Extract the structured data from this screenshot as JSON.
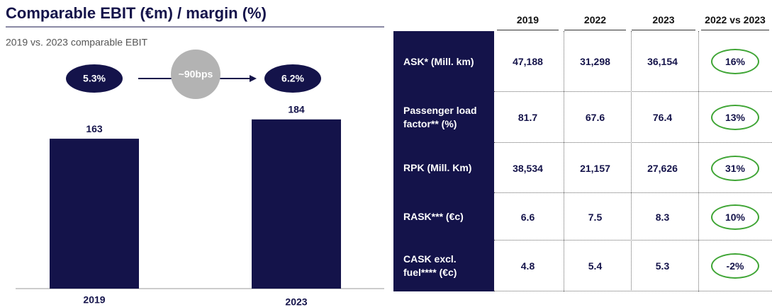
{
  "title": "Comparable EBIT (€m) / margin (%)",
  "chart_data": {
    "type": "bar",
    "subtitle": "2019 vs. 2023 comparable EBIT",
    "categories": [
      "2019",
      "2023"
    ],
    "values": [
      163,
      184
    ],
    "color": "#14134a",
    "ylim": [
      0,
      200
    ],
    "annotations": [
      "5.3%",
      "~90bps",
      "6.2%"
    ]
  },
  "table": {
    "columns": [
      "2019",
      "2022",
      "2023",
      "2022 vs 2023"
    ],
    "rows": [
      {
        "label": "ASK* (Mill. km)",
        "values": [
          "47,188",
          "31,298",
          "36,154",
          "16%"
        ]
      },
      {
        "label": "Passenger load factor** (%)",
        "values": [
          "81.7",
          "67.6",
          "76.4",
          "13%"
        ]
      },
      {
        "label": "RPK (Mill. Km)",
        "values": [
          "38,534",
          "21,157",
          "27,626",
          "31%"
        ]
      },
      {
        "label": "RASK*** (€c)",
        "values": [
          "6.6",
          "7.5",
          "8.3",
          "10%"
        ]
      },
      {
        "label": "CASK excl. fuel**** (€c)",
        "values": [
          "4.8",
          "5.4",
          "5.3",
          "-2%"
        ]
      }
    ]
  }
}
